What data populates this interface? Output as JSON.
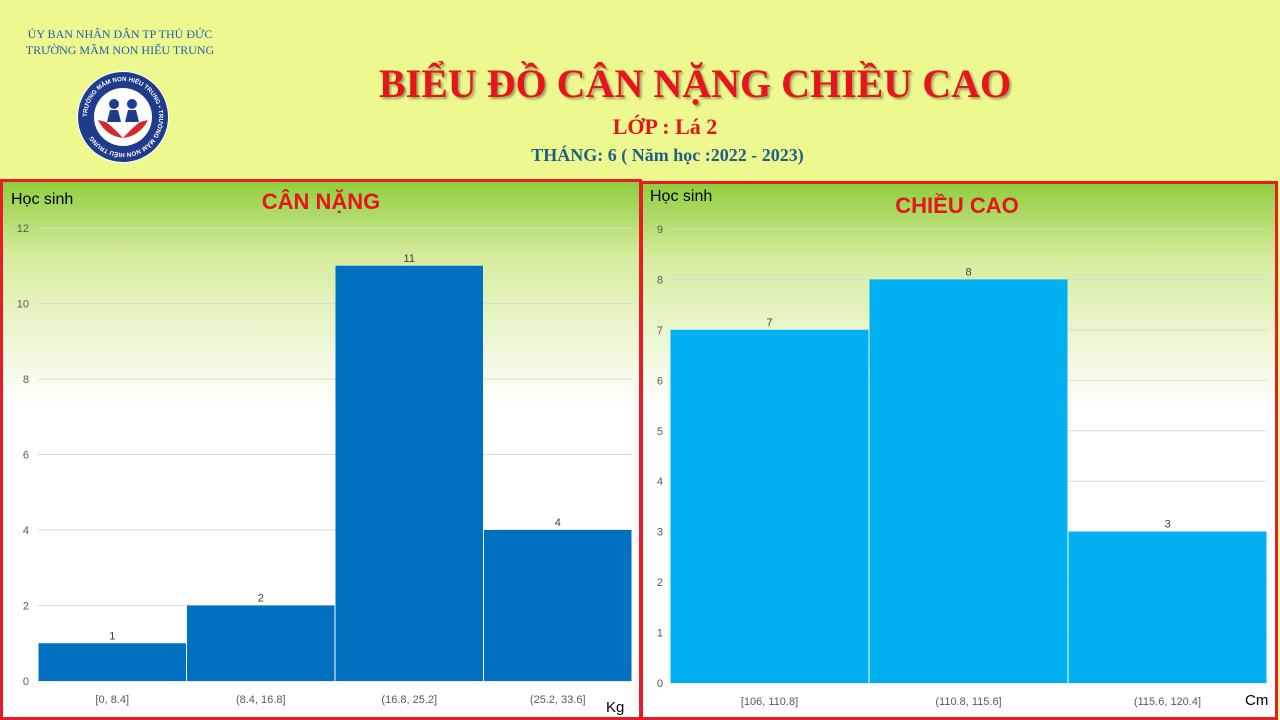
{
  "header": {
    "org_line1": "ỦY BAN NHÂN DÂN TP THỦ ĐỨC",
    "org_line2": "TRƯỜNG  MẦM  NON HIẾU  TRUNG",
    "logo_text": "TRƯỜNG MẦM NON HIẾU TRUNG",
    "title": "BIỂU ĐỒ CÂN NẶNG CHIỀU CAO",
    "class_line": "LỚP : Lá 2",
    "month_line": "THÁNG:  6 ( Năm học :2022 - 2023)"
  },
  "colors": {
    "background": "#edf98e",
    "title_red": "#e8141c",
    "panel_border": "#e81c24",
    "weight_bar": "#0070c0",
    "height_bar": "#00b0f0"
  },
  "chart_data": [
    {
      "type": "bar",
      "title": "CÂN NẶNG",
      "ylabel": "Học sinh",
      "xlabel": "Kg",
      "categories": [
        "[0, 8.4]",
        "(8.4, 16.8]",
        "(16.8, 25.2]",
        "(25.2, 33.6]"
      ],
      "values": [
        1,
        2,
        11,
        4
      ],
      "ylim": [
        0,
        12
      ],
      "yticks": [
        0,
        2,
        4,
        6,
        8,
        10,
        12
      ],
      "grid": true,
      "color": "#0070c0"
    },
    {
      "type": "bar",
      "title": "CHIỀU CAO",
      "ylabel": "Học sinh",
      "xlabel": "Cm",
      "categories": [
        "[106, 110.8]",
        "(110.8, 115.6]",
        "(115.6, 120.4]"
      ],
      "values": [
        7,
        8,
        3
      ],
      "ylim": [
        0,
        9
      ],
      "yticks": [
        0,
        1,
        2,
        3,
        4,
        5,
        6,
        7,
        8,
        9
      ],
      "grid": true,
      "color": "#00b0f0"
    }
  ]
}
